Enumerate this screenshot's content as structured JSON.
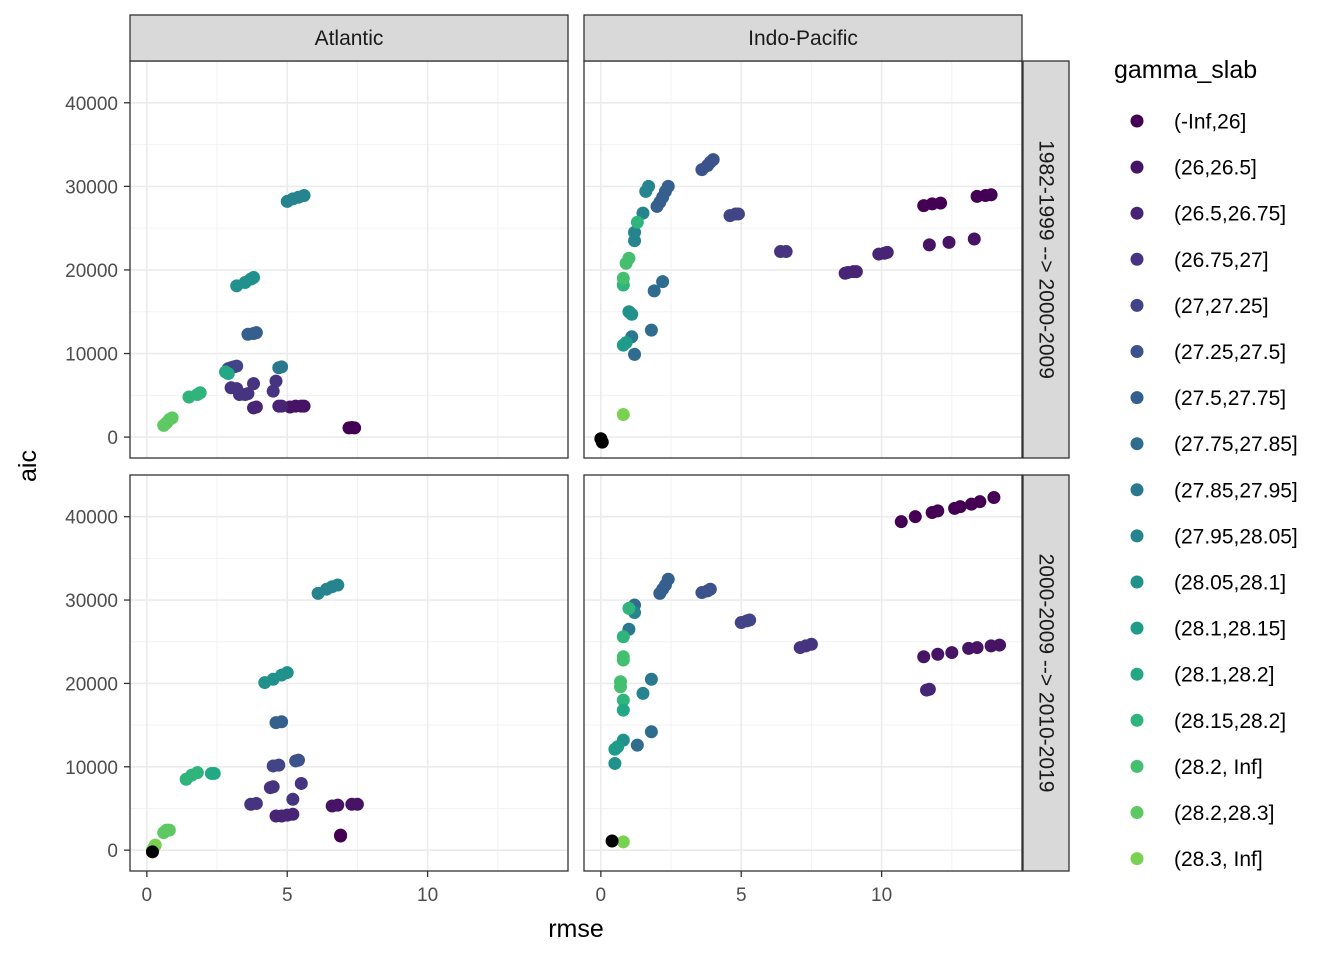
{
  "chart_data": {
    "type": "scatter",
    "facet_cols": [
      "Atlantic",
      "Indo-Pacific"
    ],
    "facet_rows": [
      "1982-1999 --> 2000-2009",
      "2000-2009 --> 2010-2019"
    ],
    "xlabel": "rmse",
    "ylabel": "aic",
    "xlim": [
      -0.6,
      15
    ],
    "ylim": [
      -2500,
      45000
    ],
    "x_ticks": [
      0,
      5,
      10
    ],
    "y_ticks": [
      0,
      10000,
      20000,
      30000,
      40000
    ],
    "x_tick_labels": [
      "0",
      "5",
      "10"
    ],
    "y_tick_labels": [
      "0",
      "10000",
      "20000",
      "30000",
      "40000"
    ],
    "legend": {
      "title": "gamma_slab",
      "position": "right",
      "entries": [
        "(-Inf,26]",
        "(26,26.5]",
        "(26.5,26.75]",
        "(26.75,27]",
        "(27,27.25]",
        "(27.25,27.5]",
        "(27.5,27.75]",
        "(27.75,27.85]",
        "(27.85,27.95]",
        "(27.95,28.05]",
        "(28.05,28.1]",
        "(28.1,28.15]",
        "(28.1,28.2]",
        "(28.15,28.2]",
        "(28.2, Inf]",
        "(28.2,28.3]",
        "(28.3, Inf]"
      ],
      "colors": [
        "#440154",
        "#471365",
        "#482475",
        "#463480",
        "#414487",
        "#3B528B",
        "#355F8D",
        "#2F6C8E",
        "#2A788E",
        "#25848E",
        "#21918C",
        "#1E9C89",
        "#22A884",
        "#2FB47C",
        "#44BF70",
        "#5EC962",
        "#7AD151"
      ]
    },
    "panels": [
      {
        "col": "Atlantic",
        "row": "1982-1999 --> 2000-2009",
        "points": [
          [
            7.2,
            1100,
            0
          ],
          [
            7.3,
            1150,
            0
          ],
          [
            7.4,
            1100,
            0
          ],
          [
            5.1,
            3600,
            1
          ],
          [
            5.3,
            3700,
            1
          ],
          [
            5.5,
            3700,
            1
          ],
          [
            5.6,
            3700,
            1
          ],
          [
            3.8,
            3500,
            2
          ],
          [
            3.9,
            3600,
            2
          ],
          [
            4.7,
            3700,
            2
          ],
          [
            4.8,
            3700,
            2
          ],
          [
            3.3,
            5100,
            3
          ],
          [
            3.5,
            5100,
            3
          ],
          [
            3.6,
            5200,
            3
          ],
          [
            4.5,
            5500,
            3
          ],
          [
            4.6,
            6700,
            3
          ],
          [
            3.8,
            6400,
            3
          ],
          [
            3.0,
            5900,
            3
          ],
          [
            3.2,
            5800,
            3
          ],
          [
            2.9,
            8200,
            4
          ],
          [
            3.0,
            8300,
            4
          ],
          [
            3.1,
            8400,
            4
          ],
          [
            3.2,
            8500,
            4
          ],
          [
            3.6,
            12300,
            6
          ],
          [
            3.8,
            12400,
            6
          ],
          [
            3.9,
            12500,
            6
          ],
          [
            4.7,
            8300,
            8
          ],
          [
            4.8,
            8400,
            8
          ],
          [
            5.0,
            28200,
            9
          ],
          [
            5.2,
            28500,
            9
          ],
          [
            5.4,
            28700,
            9
          ],
          [
            5.6,
            28900,
            9
          ],
          [
            3.2,
            18100,
            10
          ],
          [
            3.5,
            18500,
            10
          ],
          [
            3.7,
            18900,
            10
          ],
          [
            3.8,
            19100,
            10
          ],
          [
            2.8,
            7800,
            12
          ],
          [
            2.9,
            7600,
            12
          ],
          [
            1.5,
            4800,
            13
          ],
          [
            1.8,
            5100,
            13
          ],
          [
            1.9,
            5300,
            13
          ],
          [
            0.6,
            1400,
            15
          ],
          [
            0.7,
            1700,
            15
          ],
          [
            0.8,
            2100,
            15
          ],
          [
            0.9,
            2300,
            15
          ]
        ]
      },
      {
        "col": "Indo-Pacific",
        "row": "1982-1999 --> 2000-2009",
        "points": [
          [
            11.5,
            27700,
            0
          ],
          [
            11.8,
            27900,
            0
          ],
          [
            12.1,
            28000,
            0
          ],
          [
            13.4,
            28800,
            0
          ],
          [
            13.7,
            28900,
            0
          ],
          [
            13.9,
            29000,
            0
          ],
          [
            11.7,
            23000,
            1
          ],
          [
            12.4,
            23300,
            1
          ],
          [
            13.3,
            23700,
            1
          ],
          [
            8.7,
            19600,
            2
          ],
          [
            8.8,
            19700,
            2
          ],
          [
            9.0,
            19800,
            2
          ],
          [
            9.1,
            19800,
            2
          ],
          [
            9.9,
            21900,
            2
          ],
          [
            10.1,
            22000,
            2
          ],
          [
            10.2,
            22100,
            2
          ],
          [
            6.4,
            22200,
            3
          ],
          [
            6.6,
            22200,
            3
          ],
          [
            4.6,
            26500,
            4
          ],
          [
            4.8,
            26700,
            4
          ],
          [
            4.9,
            26700,
            4
          ],
          [
            3.6,
            32000,
            5
          ],
          [
            3.8,
            32500,
            5
          ],
          [
            3.9,
            32900,
            5
          ],
          [
            4.0,
            33200,
            5
          ],
          [
            2.0,
            27600,
            6
          ],
          [
            2.1,
            28100,
            6
          ],
          [
            2.2,
            28700,
            6
          ],
          [
            2.3,
            29400,
            6
          ],
          [
            2.4,
            30000,
            6
          ],
          [
            2.2,
            18600,
            7
          ],
          [
            1.9,
            17500,
            7
          ],
          [
            1.8,
            12800,
            7
          ],
          [
            1.2,
            9900,
            7
          ],
          [
            1.1,
            12000,
            8
          ],
          [
            1.5,
            26800,
            9
          ],
          [
            1.6,
            29400,
            9
          ],
          [
            1.7,
            30000,
            9
          ],
          [
            1.2,
            23500,
            9
          ],
          [
            1.2,
            24500,
            9
          ],
          [
            1.0,
            15000,
            10
          ],
          [
            1.1,
            14700,
            10
          ],
          [
            0.8,
            11000,
            11
          ],
          [
            0.9,
            11300,
            11
          ],
          [
            1.3,
            25700,
            13
          ],
          [
            0.9,
            20800,
            14
          ],
          [
            1.0,
            21400,
            14
          ],
          [
            0.8,
            18200,
            13
          ],
          [
            0.8,
            19000,
            14
          ],
          [
            0.8,
            2700,
            16
          ],
          [
            0.0,
            -200,
            17
          ],
          [
            0.05,
            -600,
            17
          ]
        ]
      },
      {
        "col": "Atlantic",
        "row": "2000-2009 --> 2010-2019",
        "points": [
          [
            6.9,
            1800,
            0
          ],
          [
            6.9,
            1700,
            0
          ],
          [
            6.6,
            5300,
            1
          ],
          [
            6.8,
            5400,
            1
          ],
          [
            7.3,
            5500,
            1
          ],
          [
            7.5,
            5500,
            1
          ],
          [
            4.6,
            4100,
            2
          ],
          [
            4.8,
            4100,
            2
          ],
          [
            5.0,
            4200,
            2
          ],
          [
            5.2,
            4300,
            2
          ],
          [
            3.7,
            5500,
            3
          ],
          [
            3.9,
            5600,
            3
          ],
          [
            5.2,
            6100,
            3
          ],
          [
            5.5,
            8000,
            3
          ],
          [
            4.4,
            7500,
            3
          ],
          [
            4.5,
            7600,
            3
          ],
          [
            4.5,
            10100,
            4
          ],
          [
            4.7,
            10200,
            4
          ],
          [
            5.3,
            10700,
            5
          ],
          [
            5.4,
            10800,
            5
          ],
          [
            4.6,
            15300,
            6
          ],
          [
            4.8,
            15400,
            6
          ],
          [
            6.1,
            30800,
            9
          ],
          [
            6.4,
            31300,
            9
          ],
          [
            6.6,
            31600,
            9
          ],
          [
            6.8,
            31800,
            9
          ],
          [
            4.2,
            20100,
            10
          ],
          [
            4.5,
            20500,
            10
          ],
          [
            4.8,
            21000,
            10
          ],
          [
            5.0,
            21300,
            10
          ],
          [
            1.4,
            8500,
            13
          ],
          [
            1.6,
            9000,
            13
          ],
          [
            1.8,
            9300,
            13
          ],
          [
            2.3,
            9200,
            12
          ],
          [
            2.4,
            9200,
            12
          ],
          [
            0.6,
            2100,
            15
          ],
          [
            0.7,
            2400,
            15
          ],
          [
            0.8,
            2400,
            15
          ],
          [
            0.2,
            0,
            16
          ],
          [
            0.25,
            300,
            16
          ],
          [
            0.3,
            600,
            16
          ],
          [
            0.2,
            -200,
            17
          ]
        ]
      },
      {
        "col": "Indo-Pacific",
        "row": "2000-2009 --> 2010-2019",
        "points": [
          [
            10.7,
            39400,
            0
          ],
          [
            11.2,
            40000,
            0
          ],
          [
            11.8,
            40500,
            0
          ],
          [
            12.0,
            40700,
            0
          ],
          [
            12.6,
            41000,
            0
          ],
          [
            12.8,
            41200,
            0
          ],
          [
            13.2,
            41500,
            0
          ],
          [
            13.5,
            41800,
            0
          ],
          [
            14.0,
            42300,
            0
          ],
          [
            11.5,
            23200,
            1
          ],
          [
            12.0,
            23500,
            1
          ],
          [
            12.5,
            23700,
            1
          ],
          [
            13.1,
            24200,
            1
          ],
          [
            13.4,
            24300,
            1
          ],
          [
            13.9,
            24500,
            1
          ],
          [
            14.2,
            24600,
            1
          ],
          [
            11.6,
            19200,
            2
          ],
          [
            11.7,
            19300,
            2
          ],
          [
            7.1,
            24300,
            3
          ],
          [
            7.3,
            24500,
            3
          ],
          [
            7.5,
            24700,
            3
          ],
          [
            5.0,
            27300,
            4
          ],
          [
            5.2,
            27500,
            4
          ],
          [
            5.3,
            27600,
            4
          ],
          [
            3.6,
            30900,
            5
          ],
          [
            3.8,
            31100,
            5
          ],
          [
            3.9,
            31300,
            5
          ],
          [
            2.1,
            30800,
            6
          ],
          [
            2.2,
            31300,
            6
          ],
          [
            2.3,
            31800,
            6
          ],
          [
            2.4,
            32500,
            6
          ],
          [
            1.3,
            12600,
            7
          ],
          [
            1.8,
            14200,
            7
          ],
          [
            1.2,
            29400,
            7
          ],
          [
            1.0,
            26500,
            8
          ],
          [
            1.8,
            20500,
            8
          ],
          [
            1.5,
            18800,
            9
          ],
          [
            1.2,
            28500,
            9
          ],
          [
            0.5,
            10400,
            10
          ],
          [
            0.8,
            13200,
            10
          ],
          [
            0.5,
            12100,
            11
          ],
          [
            0.6,
            12400,
            11
          ],
          [
            1.0,
            29000,
            13
          ],
          [
            0.8,
            25600,
            13
          ],
          [
            0.8,
            18000,
            13
          ],
          [
            0.8,
            16800,
            12
          ],
          [
            0.7,
            20200,
            14
          ],
          [
            0.7,
            19600,
            14
          ],
          [
            0.8,
            22800,
            14
          ],
          [
            0.8,
            23200,
            14
          ],
          [
            0.8,
            1000,
            16
          ],
          [
            0.4,
            1100,
            17
          ]
        ]
      }
    ]
  }
}
